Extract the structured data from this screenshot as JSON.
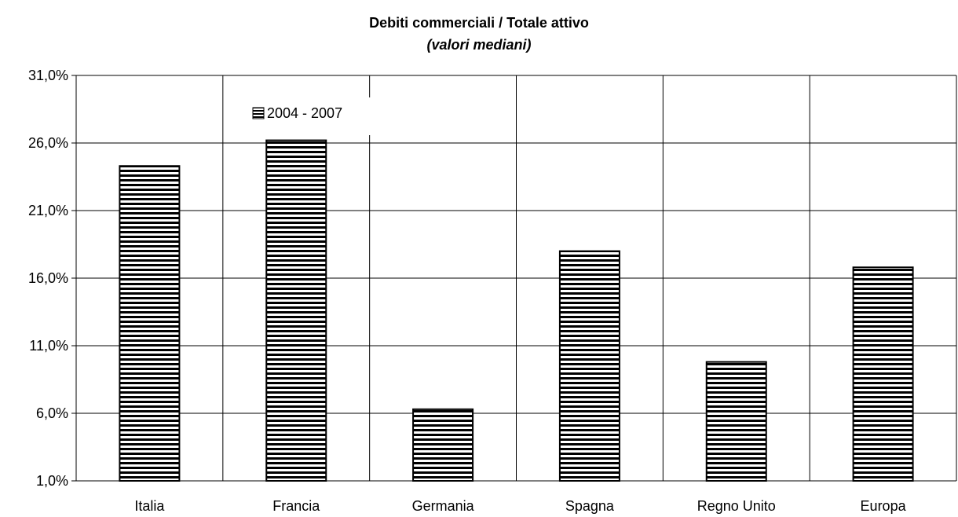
{
  "chart_data": {
    "type": "bar",
    "title": "Debiti commerciali / Totale attivo",
    "subtitle": "(valori mediani)",
    "categories": [
      "Italia",
      "Francia",
      "Germania",
      "Spagna",
      "Regno Unito",
      "Europa"
    ],
    "series": [
      {
        "name": "2004 - 2007",
        "values": [
          24.3,
          26.2,
          6.3,
          18.0,
          9.8,
          16.8
        ]
      }
    ],
    "y_ticks": [
      "1,0%",
      "6,0%",
      "11,0%",
      "16,0%",
      "21,0%",
      "26,0%",
      "31,0%"
    ],
    "ylim": [
      1,
      31
    ],
    "y_tick_step": 5,
    "grid": true,
    "vertical_category_grid": true,
    "legend_position": "top-left",
    "bar_pattern": "horizontal-stripes",
    "colors": {
      "bar_stripe": "#000000",
      "bar_background": "#ffffff",
      "grid": "#000000",
      "background": "#ffffff"
    }
  }
}
